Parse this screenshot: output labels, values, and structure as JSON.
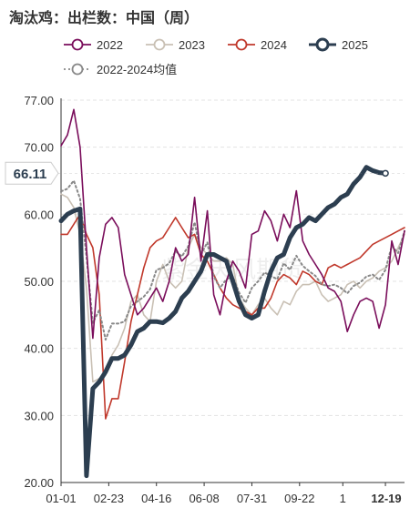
{
  "chart_data": {
    "type": "line",
    "title": "淘汰鸡：出栏数：中国（周）",
    "ylim": [
      20,
      77
    ],
    "yticks": [
      "20.00",
      "30.00",
      "40.00",
      "50.00",
      "60.00",
      "70.00",
      "77.00"
    ],
    "xticks": [
      "01-01",
      "02-23",
      "04-16",
      "06-08",
      "07-31",
      "09-22",
      "1",
      "12-19"
    ],
    "highlight_x_label": "12-19",
    "last_value_label": "66.11",
    "watermark": "紫金天风期货",
    "grid": true,
    "legend_position": "top",
    "series": [
      {
        "name": "2022",
        "color": "#7a0d5b",
        "dashed": false,
        "values": [
          70.2,
          71.8,
          75.6,
          70.0,
          55.0,
          41.5,
          53.5,
          58.5,
          59.5,
          58.0,
          51.0,
          48.0,
          45.0,
          46.0,
          47.5,
          49.0,
          47.0,
          50.0,
          55.0,
          53.0,
          54.0,
          62.5,
          53.0,
          60.5,
          48.0,
          45.0,
          50.0,
          53.0,
          51.5,
          49.0,
          57.0,
          57.5,
          60.5,
          59.0,
          56.0,
          60.0,
          58.0,
          63.5,
          56.0,
          54.0,
          52.5,
          51.0,
          49.0,
          48.5,
          47.0,
          42.5,
          45.0,
          47.0,
          47.5,
          47.0,
          43.0,
          46.5,
          56.0,
          52.5,
          57.5
        ]
      },
      {
        "name": "2023",
        "color": "#c9c0b4",
        "dashed": false,
        "values": [
          63.0,
          62.5,
          61.0,
          57.0,
          49.0,
          35.0,
          35.5,
          36.0,
          39.0,
          40.5,
          43.0,
          47.0,
          48.0,
          45.0,
          44.0,
          50.0,
          52.5,
          50.0,
          49.0,
          50.0,
          55.0,
          57.0,
          55.0,
          54.0,
          53.0,
          53.0,
          53.5,
          52.5,
          47.5,
          46.0,
          45.0,
          46.5,
          47.5,
          46.0,
          45.0,
          47.0,
          46.5,
          48.5,
          49.5,
          49.5,
          50.0,
          48.0,
          47.0,
          47.5,
          48.0,
          49.5,
          50.0,
          49.0,
          50.0,
          50.5,
          51.5,
          52.0,
          53.0,
          55.0,
          57.0
        ]
      },
      {
        "name": "2024",
        "color": "#c0382b",
        "dashed": false,
        "values": [
          57.0,
          57.0,
          58.5,
          60.0,
          57.0,
          55.0,
          48.0,
          29.5,
          32.5,
          32.5,
          38.0,
          44.0,
          48.0,
          52.0,
          55.0,
          56.0,
          56.5,
          58.0,
          59.5,
          58.0,
          56.5,
          57.0,
          54.0,
          53.0,
          51.0,
          49.0,
          47.5,
          46.5,
          46.0,
          45.5,
          45.0,
          46.0,
          46.0,
          47.5,
          50.0,
          51.0,
          50.5,
          49.5,
          51.5,
          51.0,
          50.0,
          49.5,
          52.0,
          52.5,
          52.0,
          52.5,
          53.0,
          53.5,
          54.5,
          55.5,
          56.0,
          56.5,
          57.0,
          57.5,
          58.0
        ]
      },
      {
        "name": "2025",
        "color": "#2c3e50",
        "dashed": false,
        "values": [
          59.0,
          60.0,
          60.5,
          60.8,
          21.0,
          34.0,
          35.0,
          36.5,
          38.5,
          38.5,
          39.0,
          40.5,
          42.5,
          43.0,
          44.0,
          44.0,
          43.8,
          44.5,
          45.5,
          47.5,
          48.5,
          50.0,
          51.5,
          54.0,
          54.0,
          53.5,
          53.0,
          50.0,
          47.0,
          45.0,
          44.5,
          45.0,
          48.5,
          51.5,
          53.5,
          54.0,
          56.5,
          58.0,
          58.5,
          59.5,
          59.0,
          60.0,
          61.0,
          61.5,
          62.5,
          63.0,
          64.5,
          65.5,
          67.0,
          66.5,
          66.2,
          66.1
        ]
      },
      {
        "name": "2022-2024均值",
        "color": "#888888",
        "dashed": true,
        "values": [
          63.4,
          63.8,
          65.0,
          62.3,
          53.7,
          43.8,
          45.7,
          41.3,
          43.7,
          43.7,
          44.0,
          46.3,
          47.0,
          47.7,
          48.8,
          51.7,
          52.0,
          52.7,
          54.5,
          53.7,
          55.2,
          58.8,
          54.0,
          55.8,
          50.7,
          49.0,
          50.3,
          50.7,
          48.3,
          46.8,
          49.0,
          50.0,
          51.3,
          50.8,
          50.3,
          52.7,
          51.7,
          53.8,
          52.3,
          51.5,
          50.8,
          49.5,
          49.3,
          49.5,
          49.0,
          48.2,
          49.3,
          49.8,
          50.7,
          51.0,
          50.2,
          51.7,
          55.3,
          54.2,
          57.5
        ]
      }
    ]
  }
}
